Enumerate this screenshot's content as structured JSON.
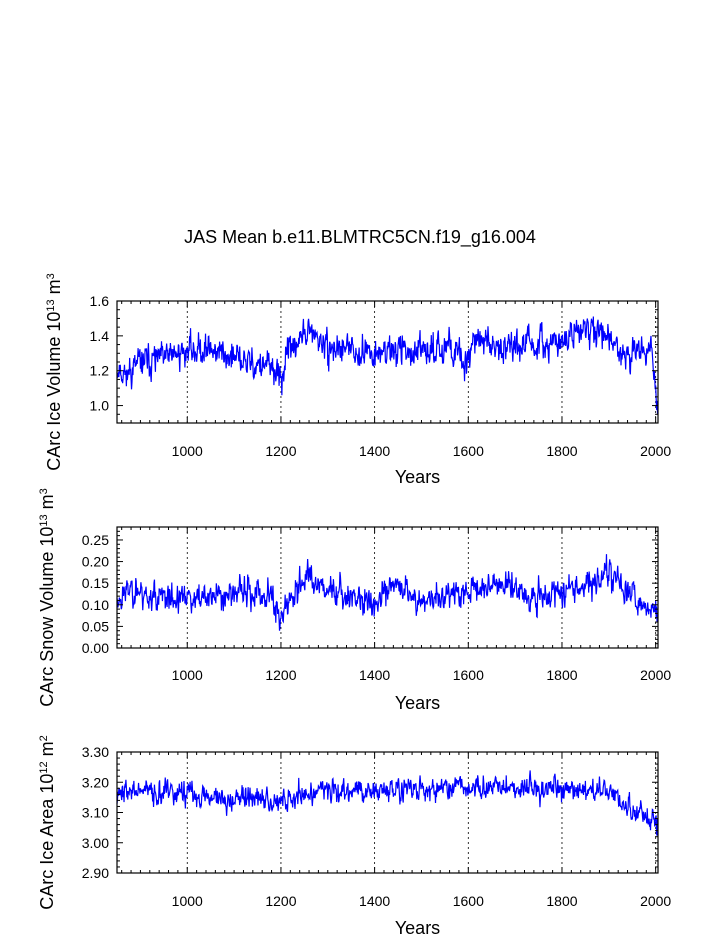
{
  "title": "JAS Mean b.e11.BLMTRC5CN.f19_g16.004",
  "colors": {
    "line": "#0000ff",
    "axis": "#000000",
    "grid": "#000000"
  },
  "chart_data": [
    {
      "type": "line",
      "id": "ice_volume",
      "ylabel": {
        "main": "CArc Ice Volume 10",
        "exp1": "13",
        "mid": " m",
        "exp2": "3"
      },
      "xlabel": "Years",
      "xlim": [
        850,
        2005
      ],
      "ylim": [
        0.9,
        1.6
      ],
      "xticks": [
        1000,
        1200,
        1400,
        1600,
        1800,
        2000
      ],
      "xtick_labels": [
        "1000",
        "1200",
        "1400",
        "1600",
        "1800",
        "2000"
      ],
      "yticks": [
        1.0,
        1.2,
        1.4,
        1.6
      ],
      "ytick_labels": [
        "1.0",
        "1.2",
        "1.4",
        "1.6"
      ],
      "yminor_step": 0.05,
      "grid_x": [
        1000,
        1200,
        1400,
        1600,
        1800,
        2000
      ],
      "series_gen": {
        "seed": 11,
        "mean": 1.3,
        "amp": 0.09,
        "min": 0.95,
        "max": 1.58
      },
      "anchors": [
        [
          850,
          1.22
        ],
        [
          870,
          1.18
        ],
        [
          900,
          1.25
        ],
        [
          950,
          1.27
        ],
        [
          1000,
          1.32
        ],
        [
          1050,
          1.33
        ],
        [
          1100,
          1.27
        ],
        [
          1150,
          1.23
        ],
        [
          1180,
          1.22
        ],
        [
          1200,
          1.15
        ],
        [
          1220,
          1.33
        ],
        [
          1260,
          1.42
        ],
        [
          1300,
          1.33
        ],
        [
          1350,
          1.32
        ],
        [
          1400,
          1.3
        ],
        [
          1450,
          1.33
        ],
        [
          1500,
          1.29
        ],
        [
          1560,
          1.36
        ],
        [
          1590,
          1.23
        ],
        [
          1610,
          1.38
        ],
        [
          1650,
          1.35
        ],
        [
          1700,
          1.36
        ],
        [
          1750,
          1.33
        ],
        [
          1800,
          1.38
        ],
        [
          1850,
          1.43
        ],
        [
          1900,
          1.41
        ],
        [
          1930,
          1.29
        ],
        [
          1960,
          1.31
        ],
        [
          1990,
          1.31
        ],
        [
          2005,
          1.0
        ]
      ]
    },
    {
      "type": "line",
      "id": "snow_volume",
      "ylabel": {
        "main": "CArc Snow Volume 10",
        "exp1": "13",
        "mid": " m",
        "exp2": "3"
      },
      "xlabel": "Years",
      "xlim": [
        850,
        2005
      ],
      "ylim": [
        0.0,
        0.28
      ],
      "xticks": [
        1000,
        1200,
        1400,
        1600,
        1800,
        2000
      ],
      "xtick_labels": [
        "1000",
        "1200",
        "1400",
        "1600",
        "1800",
        "2000"
      ],
      "yticks": [
        0.0,
        0.05,
        0.1,
        0.15,
        0.2,
        0.25
      ],
      "ytick_labels": [
        "0.00",
        "0.05",
        "0.10",
        "0.15",
        "0.20",
        "0.25"
      ],
      "yminor_step": 0.01,
      "grid_x": [
        1000,
        1200,
        1400,
        1600,
        1800,
        2000
      ],
      "series_gen": {
        "seed": 23,
        "mean": 0.12,
        "amp": 0.035,
        "min": 0.04,
        "max": 0.245
      },
      "anchors": [
        [
          850,
          0.11
        ],
        [
          880,
          0.14
        ],
        [
          920,
          0.12
        ],
        [
          1000,
          0.11
        ],
        [
          1100,
          0.13
        ],
        [
          1180,
          0.12
        ],
        [
          1200,
          0.07
        ],
        [
          1230,
          0.13
        ],
        [
          1260,
          0.17
        ],
        [
          1300,
          0.14
        ],
        [
          1400,
          0.1
        ],
        [
          1450,
          0.15
        ],
        [
          1500,
          0.11
        ],
        [
          1600,
          0.13
        ],
        [
          1650,
          0.15
        ],
        [
          1700,
          0.14
        ],
        [
          1750,
          0.12
        ],
        [
          1800,
          0.13
        ],
        [
          1850,
          0.15
        ],
        [
          1900,
          0.17
        ],
        [
          1950,
          0.12
        ],
        [
          2005,
          0.08
        ]
      ]
    },
    {
      "type": "line",
      "id": "ice_area",
      "ylabel": {
        "main": "CArc Ice Area 10",
        "exp1": "12",
        "mid": " m",
        "exp2": "2"
      },
      "xlabel": "Years",
      "xlim": [
        850,
        2005
      ],
      "ylim": [
        2.9,
        3.3
      ],
      "xticks": [
        1000,
        1200,
        1400,
        1600,
        1800,
        2000
      ],
      "xtick_labels": [
        "1000",
        "1200",
        "1400",
        "1600",
        "1800",
        "2000"
      ],
      "yticks": [
        2.9,
        3.0,
        3.1,
        3.2,
        3.3
      ],
      "ytick_labels": [
        "2.90",
        "3.00",
        "3.10",
        "3.20",
        "3.30"
      ],
      "yminor_step": 0.02,
      "grid_x": [
        1000,
        1200,
        1400,
        1600,
        1800,
        2000
      ],
      "series_gen": {
        "seed": 37,
        "mean": 3.17,
        "amp": 0.04,
        "min": 2.96,
        "max": 3.29
      },
      "anchors": [
        [
          850,
          3.17
        ],
        [
          900,
          3.17
        ],
        [
          1000,
          3.16
        ],
        [
          1100,
          3.15
        ],
        [
          1200,
          3.14
        ],
        [
          1300,
          3.18
        ],
        [
          1400,
          3.17
        ],
        [
          1500,
          3.18
        ],
        [
          1600,
          3.18
        ],
        [
          1700,
          3.18
        ],
        [
          1800,
          3.18
        ],
        [
          1900,
          3.17
        ],
        [
          2005,
          3.05
        ]
      ]
    }
  ]
}
